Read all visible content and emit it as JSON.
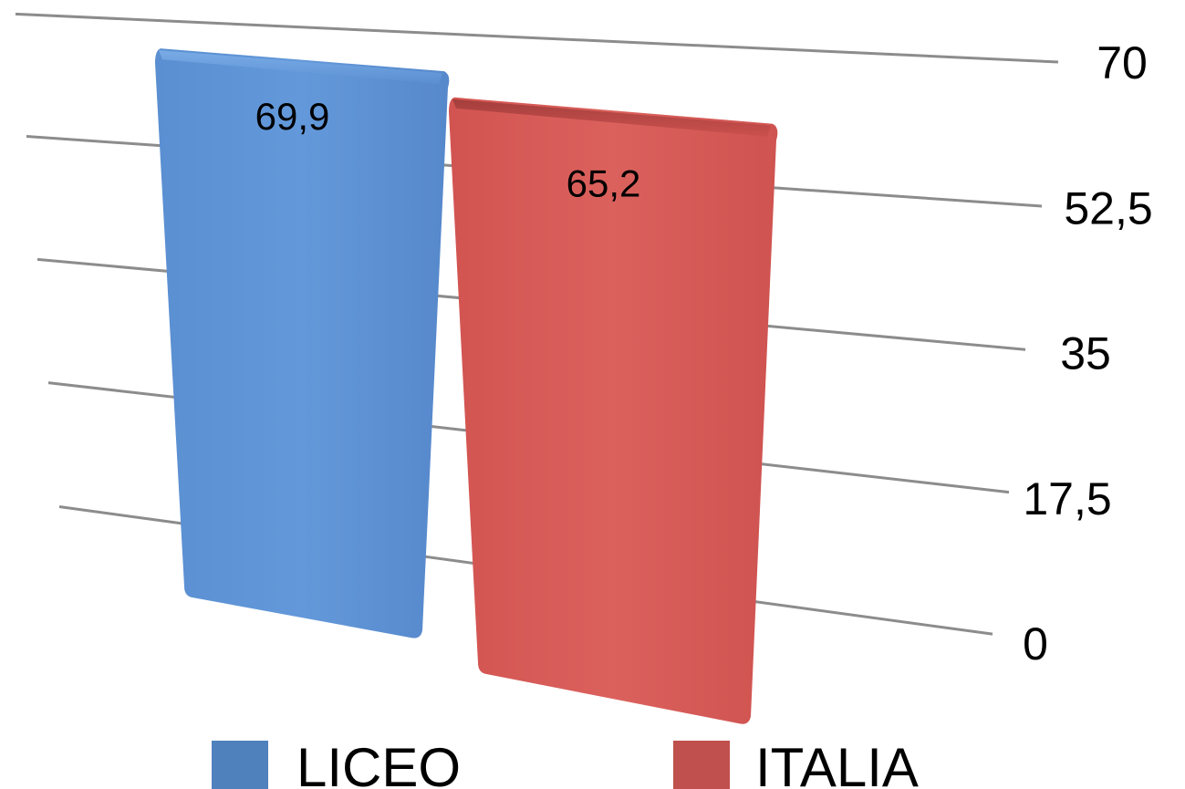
{
  "chart_data": {
    "type": "bar",
    "categories": [
      ""
    ],
    "series": [
      {
        "name": "LICEO",
        "values": [
          69.9
        ],
        "value_label": "69,9",
        "color": "#5b93d6"
      },
      {
        "name": "ITALIA",
        "values": [
          65.2
        ],
        "value_label": "65,2",
        "color": "#d85c59"
      }
    ],
    "yticks": [
      0,
      17.5,
      35,
      52.5,
      70
    ],
    "ytick_labels": [
      "0",
      "17,5",
      "35",
      "52,5",
      "70"
    ],
    "ylim": [
      0,
      70
    ],
    "y_axis_side": "right",
    "grid": true,
    "legend_position": "bottom",
    "legend_colors": [
      "#4f81bd",
      "#c0504d"
    ],
    "title": "",
    "xlabel": "",
    "ylabel": ""
  }
}
